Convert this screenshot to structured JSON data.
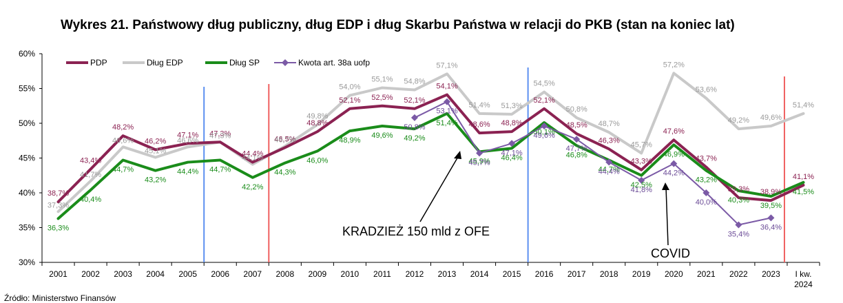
{
  "chart_data": {
    "type": "line",
    "title": "Wykres 21. Państwowy dług publiczny, dług EDP i dług Skarbu Państwa w relacji do PKB (stan na koniec lat)",
    "categories": [
      "2001",
      "2002",
      "2003",
      "2004",
      "2005",
      "2006",
      "2007",
      "2008",
      "2009",
      "2010",
      "2011",
      "2012",
      "2013",
      "2014",
      "2015",
      "2016",
      "2017",
      "2018",
      "2019",
      "2020",
      "2021",
      "2022",
      "2023",
      "I kw. 2024"
    ],
    "y_ticks": [
      "30%",
      "35%",
      "40%",
      "45%",
      "50%",
      "55%",
      "60%"
    ],
    "ylim": [
      30,
      60
    ],
    "legend_position": "top-left",
    "grid": false,
    "series": [
      {
        "name": "PDP",
        "color": "#8B2252",
        "values": [
          38.7,
          43.4,
          48.2,
          46.2,
          47.1,
          47.3,
          44.4,
          46.5,
          48.8,
          52.1,
          52.5,
          52.1,
          54.1,
          48.6,
          48.8,
          52.1,
          48.5,
          46.3,
          43.3,
          47.6,
          43.7,
          39.3,
          38.9,
          41.1
        ],
        "labels": [
          "38,7%",
          "43,4%",
          "48,2%",
          "46,2%",
          "47,1%",
          "47,3%",
          "44,4%",
          "46,5%",
          "48,8%",
          "52,1%",
          "52,5%",
          "52,1%",
          "54,1%",
          "48,6%",
          "48,8%",
          "52,1%",
          "48,5%",
          "46,3%",
          "43,3%",
          "47,6%",
          "43,7%",
          "39,3%",
          "38,9%",
          "41,1%"
        ]
      },
      {
        "name": "Dług EDP",
        "color": "#C9C9C9",
        "values": [
          37.3,
          41.7,
          46.6,
          45.1,
          46.6,
          47.3,
          44.1,
          46.7,
          49.8,
          54.0,
          55.1,
          54.8,
          57.1,
          51.4,
          51.3,
          54.5,
          50.8,
          48.7,
          45.7,
          57.2,
          53.6,
          49.2,
          49.6,
          51.4
        ],
        "labels": [
          "37,3%",
          "41,7%",
          "46,6%",
          "45,1%",
          "46,6%",
          "47,3%",
          "44,1%",
          "46,7%",
          "49,8%",
          "54,0%",
          "55,1%",
          "54,8%",
          "57,1%",
          "51,4%",
          "51,3%",
          "54,5%",
          "50,8%",
          "48,7%",
          "45,7%",
          "57,2%",
          "53,6%",
          "49,2%",
          "49,6%",
          "51,4%"
        ]
      },
      {
        "name": "Dług SP",
        "color": "#1A8C1A",
        "values": [
          36.3,
          40.4,
          44.7,
          43.2,
          44.4,
          44.7,
          42.2,
          44.3,
          46.0,
          48.9,
          49.6,
          49.2,
          51.4,
          45.9,
          46.4,
          50.1,
          46.8,
          44.7,
          42.5,
          46.9,
          43.2,
          40.3,
          39.5,
          41.5
        ],
        "labels": [
          "36,3%",
          "40,4%",
          "44,7%",
          "43,2%",
          "44,4%",
          "44,7%",
          "42,2%",
          "44,3%",
          "46,0%",
          "48,9%",
          "49,6%",
          "49,2%",
          "51,4%",
          "45,9%",
          "46,4%",
          "50,1%",
          "46,8%",
          "44,7%",
          "42,5%",
          "46,9%",
          "43,2%",
          "40,3%",
          "39,5%",
          "41,5%"
        ]
      },
      {
        "name": "Kwota art. 38a uofp",
        "color": "#7B5AA6",
        "values": [
          null,
          null,
          null,
          null,
          null,
          null,
          null,
          null,
          null,
          null,
          null,
          50.8,
          53.1,
          45.7,
          47.1,
          49.6,
          47.7,
          44.4,
          41.8,
          44.2,
          40.0,
          35.4,
          36.4,
          null
        ],
        "labels": [
          "",
          "",
          "",
          "",
          "",
          "",
          "",
          "",
          "",
          "",
          "",
          "50,8%",
          "53,1%",
          "45,7%",
          "47,1%",
          "49,6%",
          "47,7%",
          "44,4%",
          "41,8%",
          "44,2%",
          "40,0%",
          "35,4%",
          "36,4%",
          ""
        ]
      }
    ],
    "vertical_markers": [
      {
        "after": "2005",
        "color": "#5B8FF0"
      },
      {
        "after": "2007",
        "color": "#F06060"
      },
      {
        "after": "2015",
        "color": "#5B8FF0"
      },
      {
        "after": "2023",
        "color": "#F06060"
      }
    ],
    "annotations": [
      {
        "text": "KRADZIEŻ 150 mld z OFE",
        "target": "2014"
      },
      {
        "text": "COVID",
        "target": "2020"
      }
    ]
  },
  "source": "Źródło: Ministerstwo Finansów"
}
